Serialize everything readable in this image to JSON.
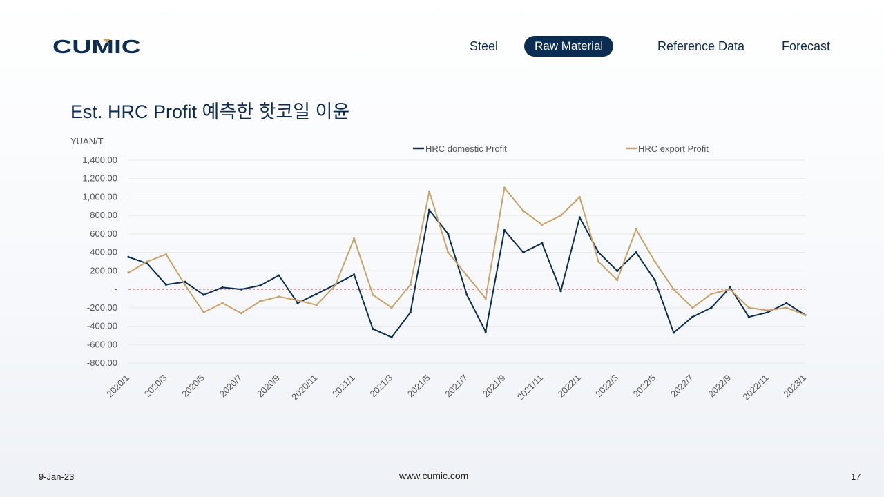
{
  "brand": {
    "logo_text": "CUMIC",
    "color": "#0c2d52"
  },
  "nav": {
    "items": [
      {
        "label": "Steel",
        "active": false
      },
      {
        "label": "Raw Material",
        "active": true
      },
      {
        "label": "Reference Data",
        "active": false
      },
      {
        "label": "Forecast",
        "active": false
      }
    ]
  },
  "page": {
    "title": "Est. HRC Profit 예측한 핫코일 이윤"
  },
  "footer": {
    "date": "9-Jan-23",
    "url": "www.cumic.com",
    "page_number": "17"
  },
  "chart_data": {
    "type": "line",
    "ylabel": "YUAN/T",
    "ylim": [
      -800,
      1400
    ],
    "yticks": [
      1400,
      1200,
      1000,
      800,
      600,
      400,
      200,
      0,
      -200,
      -400,
      -600,
      -800
    ],
    "ytick_labels": [
      "1,400.00",
      "1,200.00",
      "1,000.00",
      "800.00",
      "600.00",
      "400.00",
      "200.00",
      "-",
      "-200.00",
      "-400.00",
      "-600.00",
      "-800.00"
    ],
    "xticks": [
      "2020/1",
      "2020/3",
      "2020/5",
      "2020/7",
      "2020/9",
      "2020/11",
      "2021/1",
      "2021/3",
      "2021/5",
      "2021/7",
      "2021/9",
      "2021/11",
      "2022/1",
      "2022/3",
      "2022/5",
      "2022/7",
      "2022/9",
      "2022/11",
      "2023/1"
    ],
    "grid": true,
    "zero_line": {
      "style": "dashed",
      "color": "#e06666"
    },
    "legend_position": "top",
    "x": [
      "2020/1",
      "2020/2",
      "2020/3",
      "2020/4",
      "2020/5",
      "2020/6",
      "2020/7",
      "2020/8",
      "2020/9",
      "2020/10",
      "2020/11",
      "2020/12",
      "2021/1",
      "2021/2",
      "2021/3",
      "2021/4",
      "2021/5",
      "2021/6",
      "2021/7",
      "2021/8",
      "2021/9",
      "2021/10",
      "2021/11",
      "2021/12",
      "2022/1",
      "2022/2",
      "2022/3",
      "2022/4",
      "2022/5",
      "2022/6",
      "2022/7",
      "2022/8",
      "2022/9",
      "2022/10",
      "2022/11",
      "2022/12",
      "2023/1"
    ],
    "series": [
      {
        "name": "HRC domestic Profit",
        "color": "#0c2d52",
        "values": [
          350,
          280,
          50,
          80,
          -60,
          20,
          0,
          40,
          150,
          -150,
          -50,
          50,
          160,
          -430,
          -520,
          -250,
          860,
          600,
          -60,
          -460,
          640,
          400,
          500,
          -20,
          780,
          400,
          200,
          400,
          100,
          -470,
          -300,
          -200,
          20,
          -300,
          -250,
          -150,
          -280
        ]
      },
      {
        "name": "HRC export Profit",
        "color": "#c8a26b",
        "values": [
          180,
          300,
          380,
          50,
          -250,
          -150,
          -260,
          -130,
          -80,
          -120,
          -170,
          40,
          550,
          -60,
          -200,
          50,
          1060,
          400,
          150,
          -100,
          1100,
          850,
          700,
          800,
          1000,
          300,
          100,
          650,
          300,
          0,
          -200,
          -50,
          0,
          -200,
          -230,
          -200,
          -280
        ]
      }
    ]
  }
}
